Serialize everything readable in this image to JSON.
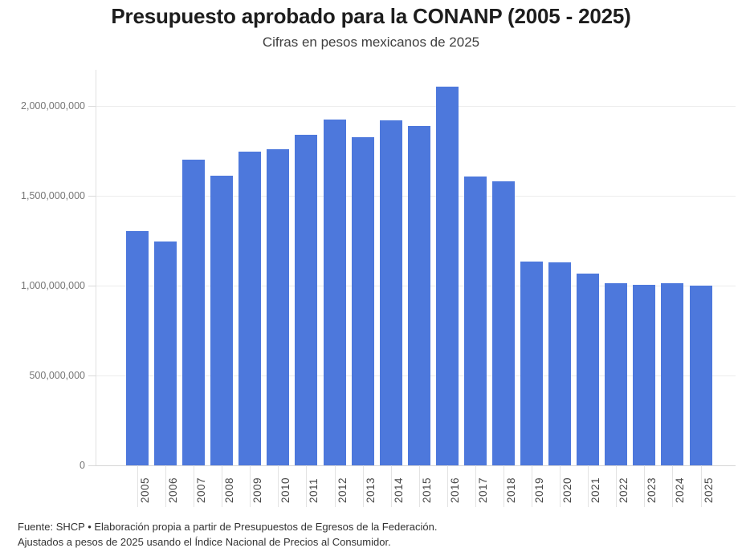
{
  "chart_data": {
    "type": "bar",
    "title": "Presupuesto aprobado para la CONANP (2005 - 2025)",
    "subtitle": "Cifras en pesos mexicanos de 2025",
    "categories": [
      "2005",
      "2006",
      "2007",
      "2008",
      "2009",
      "2010",
      "2011",
      "2012",
      "2013",
      "2014",
      "2015",
      "2016",
      "2017",
      "2018",
      "2019",
      "2020",
      "2021",
      "2022",
      "2023",
      "2024",
      "2025"
    ],
    "values": [
      1305000000,
      1245000000,
      1700000000,
      1610000000,
      1745000000,
      1760000000,
      1840000000,
      1925000000,
      1825000000,
      1920000000,
      1890000000,
      2105000000,
      1605000000,
      1580000000,
      1135000000,
      1130000000,
      1065000000,
      1015000000,
      1005000000,
      1015000000,
      1000000000
    ],
    "xlabel": "",
    "ylabel": "",
    "ylim": [
      0,
      2200000000
    ],
    "yticks": [
      {
        "value": 0,
        "label": "0"
      },
      {
        "value": 500000000,
        "label": "500,000,000"
      },
      {
        "value": 1000000000,
        "label": "1,000,000,000"
      },
      {
        "value": 1500000000,
        "label": "1,500,000,000"
      },
      {
        "value": 2000000000,
        "label": "2,000,000,000"
      }
    ],
    "grid": "horizontal",
    "legend": "none",
    "bar_color": "#4d78dc"
  },
  "footer": {
    "source_line": "Fuente: SHCP • Elaboración propia a partir de Presupuestos de Egresos de la Federación.",
    "note_line": "Ajustados a pesos de 2025 usando el Índice Nacional de Precios al Consumidor."
  }
}
